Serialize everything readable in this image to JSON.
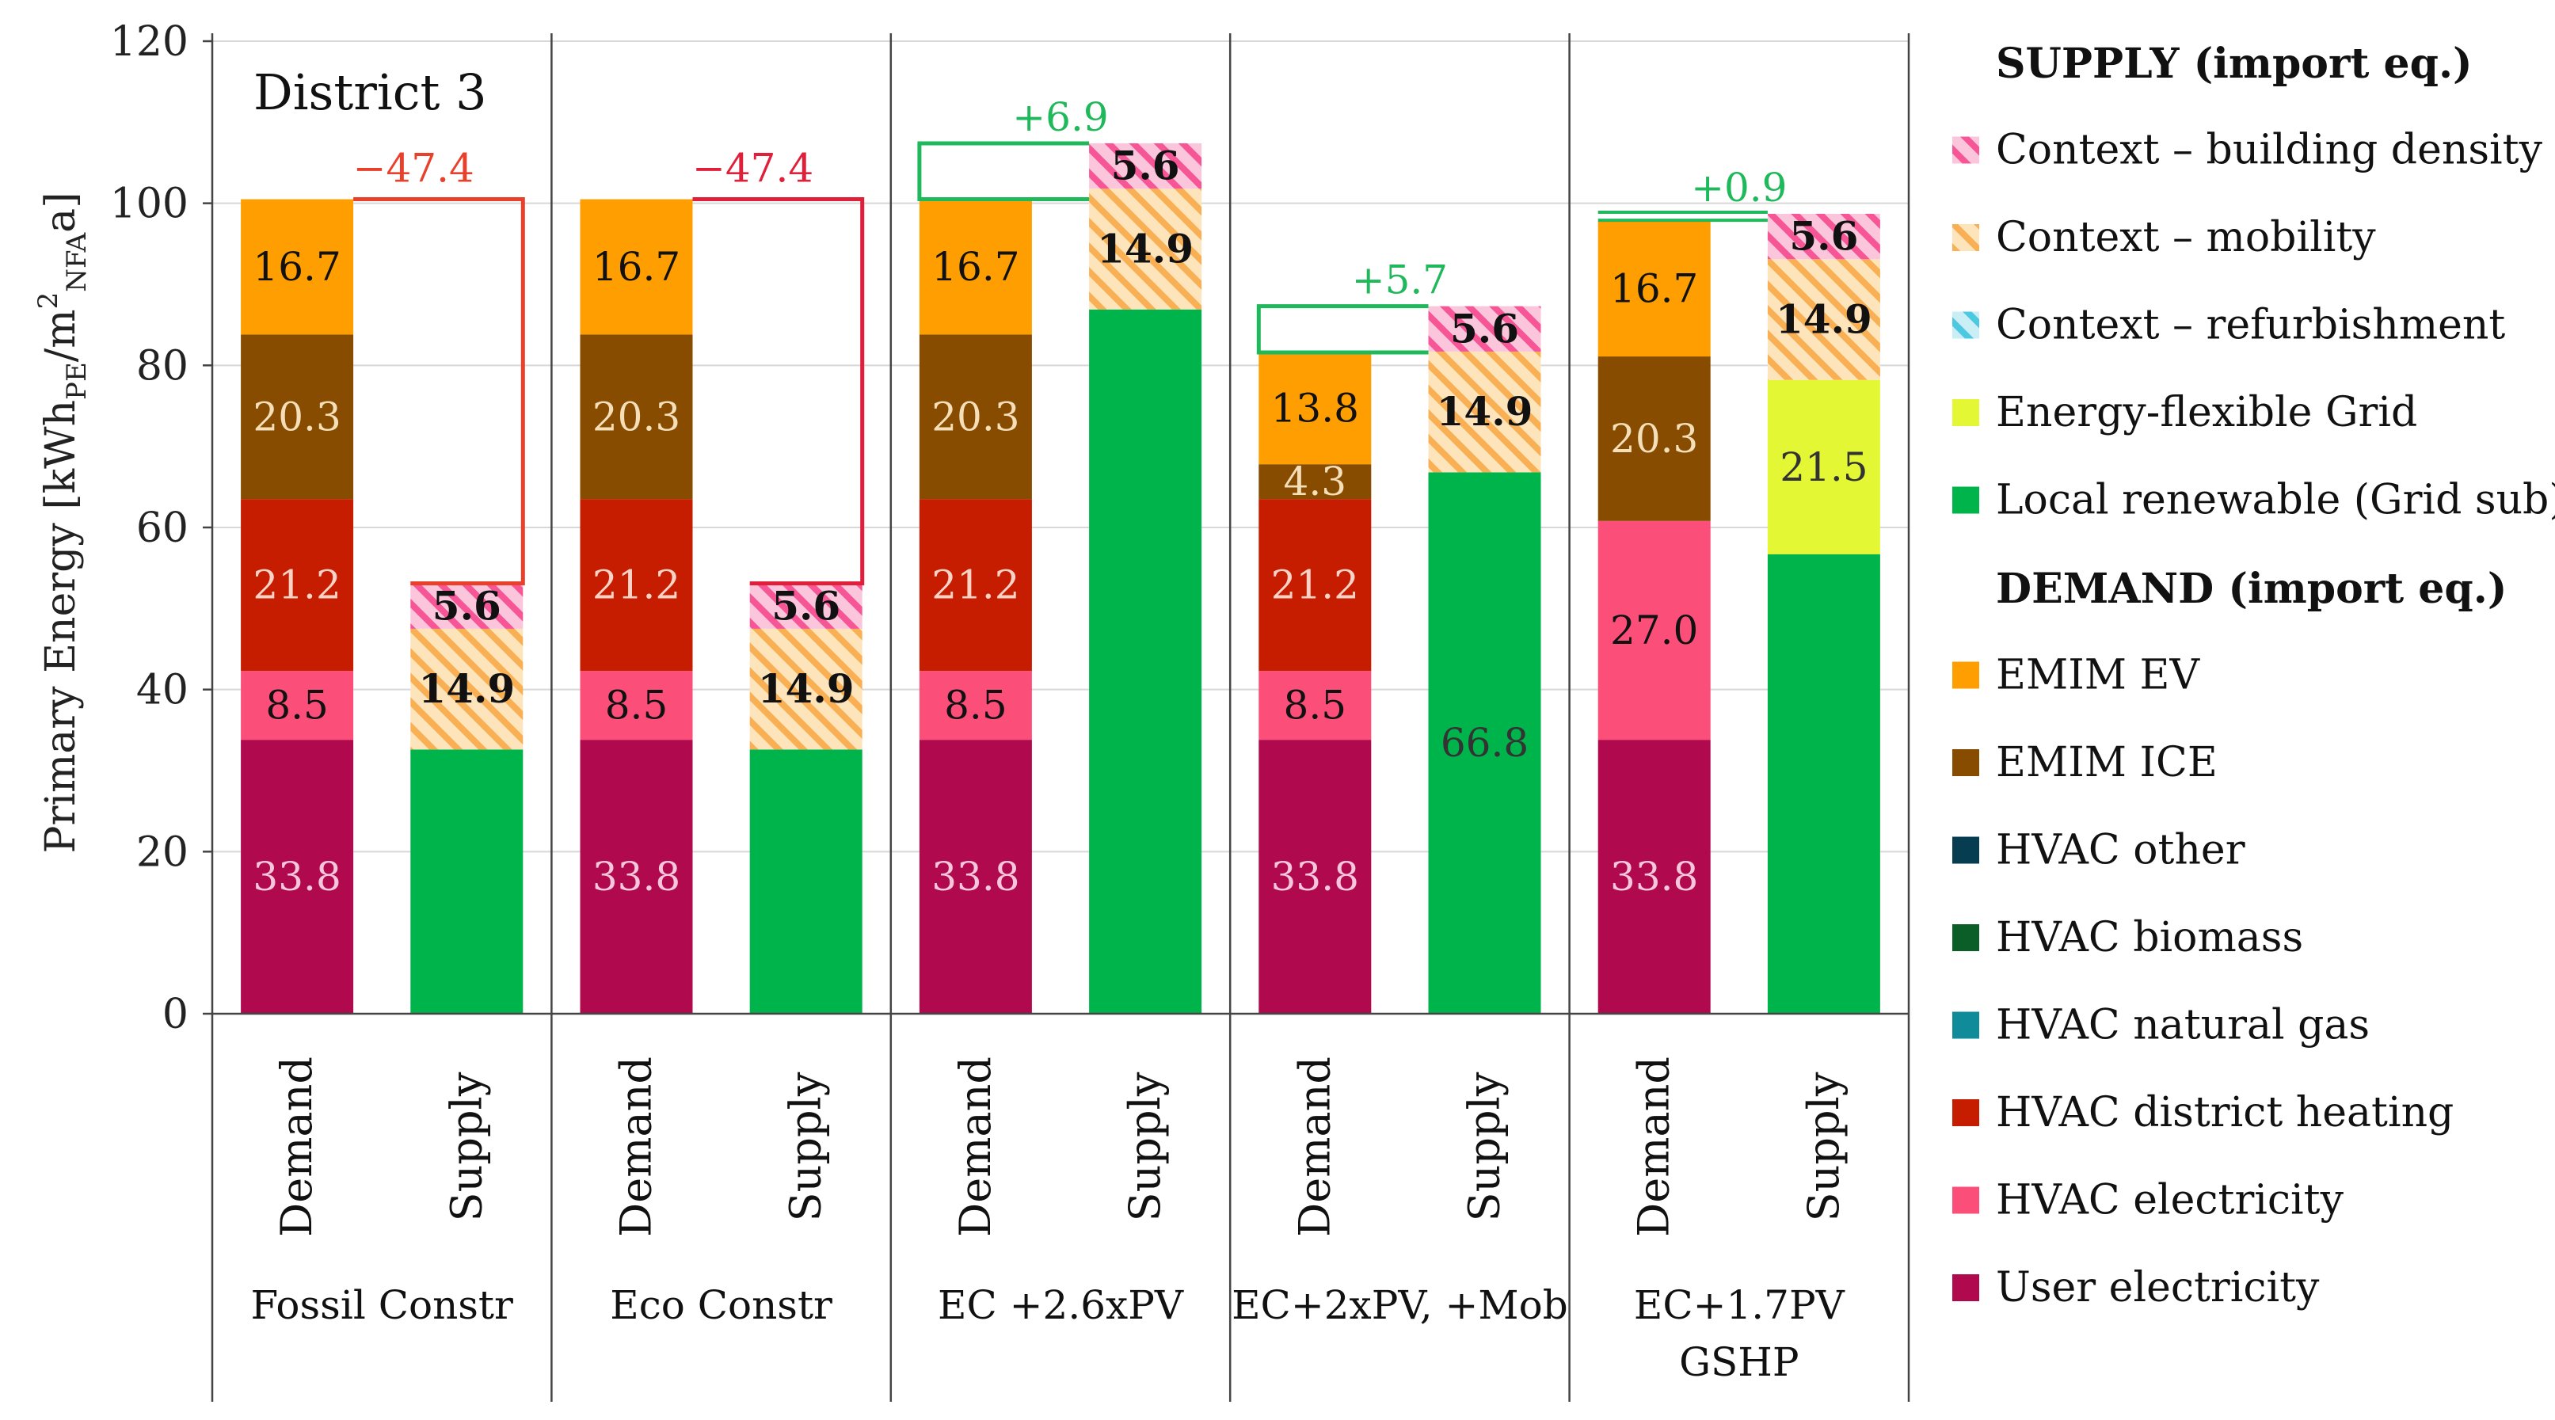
{
  "chart_data": {
    "type": "bar",
    "subtype": "stacked",
    "title": "District 3",
    "ylabel": {
      "main": "Primary Energy [kWh",
      "sub1": "PE",
      "mid": "/m",
      "sup": "2",
      "sub2": "NFA",
      "end": "a]"
    },
    "ylim": [
      0,
      120
    ],
    "yticks": [
      0,
      20,
      40,
      60,
      80,
      100,
      120
    ],
    "grid": true,
    "legend_position": "right",
    "groups": [
      {
        "label": [
          "Fossil Constr"
        ],
        "delta": "−47.4",
        "delta_color": "#e8402a",
        "demand_total": 100.5,
        "supply_total": 53.1
      },
      {
        "label": [
          "Eco Constr"
        ],
        "delta": "−47.4",
        "delta_color": "#e0203a",
        "demand_total": 100.5,
        "supply_total": 53.1
      },
      {
        "label": [
          "EC +2.6xPV"
        ],
        "delta": "+6.9",
        "delta_color": "#1fb85a",
        "demand_total": 100.5,
        "supply_total": 107.4
      },
      {
        "label": [
          "EC+2xPV, +Mob"
        ],
        "delta": "+5.7",
        "delta_color": "#1fb85a",
        "demand_total": 81.6,
        "supply_total": 87.3
      },
      {
        "label": [
          "EC+1.7PV",
          "GSHP"
        ],
        "delta": "+0.9",
        "delta_color": "#1fb85a",
        "demand_total": 97.8,
        "supply_total": 98.7
      }
    ],
    "bar_labels": [
      "Demand",
      "Supply"
    ],
    "bars": [
      {
        "group": 0,
        "kind": "demand",
        "segments": [
          {
            "series": "User electricity",
            "value": 33.8,
            "label": "33.8"
          },
          {
            "series": "HVAC electricity",
            "value": 8.5,
            "label": "8.5"
          },
          {
            "series": "HVAC district heating",
            "value": 21.2,
            "label": "21.2"
          },
          {
            "series": "EMIM ICE",
            "value": 20.3,
            "label": "20.3"
          },
          {
            "series": "EMIM EV",
            "value": 16.7,
            "label": "16.7"
          }
        ]
      },
      {
        "group": 0,
        "kind": "supply",
        "segments": [
          {
            "series": "Local renewable (Grid sub)",
            "value": 32.6,
            "label": ""
          },
          {
            "series": "Context – mobility",
            "value": 14.9,
            "label": "14.9"
          },
          {
            "series": "Context – building density",
            "value": 5.6,
            "label": "5.6"
          }
        ]
      },
      {
        "group": 1,
        "kind": "demand",
        "segments": [
          {
            "series": "User electricity",
            "value": 33.8,
            "label": "33.8"
          },
          {
            "series": "HVAC electricity",
            "value": 8.5,
            "label": "8.5"
          },
          {
            "series": "HVAC district heating",
            "value": 21.2,
            "label": "21.2"
          },
          {
            "series": "EMIM ICE",
            "value": 20.3,
            "label": "20.3"
          },
          {
            "series": "EMIM EV",
            "value": 16.7,
            "label": "16.7"
          }
        ]
      },
      {
        "group": 1,
        "kind": "supply",
        "segments": [
          {
            "series": "Local renewable (Grid sub)",
            "value": 32.6,
            "label": ""
          },
          {
            "series": "Context – mobility",
            "value": 14.9,
            "label": "14.9"
          },
          {
            "series": "Context – building density",
            "value": 5.6,
            "label": "5.6"
          }
        ]
      },
      {
        "group": 2,
        "kind": "demand",
        "segments": [
          {
            "series": "User electricity",
            "value": 33.8,
            "label": "33.8"
          },
          {
            "series": "HVAC electricity",
            "value": 8.5,
            "label": "8.5"
          },
          {
            "series": "HVAC district heating",
            "value": 21.2,
            "label": "21.2"
          },
          {
            "series": "EMIM ICE",
            "value": 20.3,
            "label": "20.3"
          },
          {
            "series": "EMIM EV",
            "value": 16.7,
            "label": "16.7"
          }
        ]
      },
      {
        "group": 2,
        "kind": "supply",
        "segments": [
          {
            "series": "Local renewable (Grid sub)",
            "value": 86.9,
            "label": ""
          },
          {
            "series": "Context – mobility",
            "value": 14.9,
            "label": "14.9"
          },
          {
            "series": "Context – building density",
            "value": 5.6,
            "label": "5.6"
          }
        ]
      },
      {
        "group": 3,
        "kind": "demand",
        "segments": [
          {
            "series": "User electricity",
            "value": 33.8,
            "label": "33.8"
          },
          {
            "series": "HVAC electricity",
            "value": 8.5,
            "label": "8.5"
          },
          {
            "series": "HVAC district heating",
            "value": 21.2,
            "label": "21.2"
          },
          {
            "series": "EMIM ICE",
            "value": 4.3,
            "label": "4.3"
          },
          {
            "series": "EMIM EV",
            "value": 13.8,
            "label": "13.8"
          }
        ]
      },
      {
        "group": 3,
        "kind": "supply",
        "segments": [
          {
            "series": "Local renewable (Grid sub)",
            "value": 66.8,
            "label": "66.8"
          },
          {
            "series": "Context – mobility",
            "value": 14.9,
            "label": "14.9"
          },
          {
            "series": "Context – building density",
            "value": 5.6,
            "label": "5.6"
          }
        ]
      },
      {
        "group": 4,
        "kind": "demand",
        "segments": [
          {
            "series": "User electricity",
            "value": 33.8,
            "label": "33.8"
          },
          {
            "series": "HVAC electricity",
            "value": 27.0,
            "label": "27.0"
          },
          {
            "series": "EMIM ICE",
            "value": 20.3,
            "label": "20.3"
          },
          {
            "series": "EMIM EV",
            "value": 16.7,
            "label": "16.7"
          }
        ]
      },
      {
        "group": 4,
        "kind": "supply",
        "segments": [
          {
            "series": "Local renewable (Grid sub)",
            "value": 56.7,
            "label": ""
          },
          {
            "series": "Energy-flexible Grid",
            "value": 21.5,
            "label": "21.5"
          },
          {
            "series": "Context – mobility",
            "value": 14.9,
            "label": "14.9"
          },
          {
            "series": "Context – building density",
            "value": 5.6,
            "label": "5.6"
          }
        ]
      }
    ],
    "series_styles": {
      "User electricity": {
        "color": "#b0094e",
        "label_color": "#f6c6dc",
        "bold": false
      },
      "HVAC electricity": {
        "color": "#fb4f7a",
        "label_color": "#111111",
        "bold": false
      },
      "HVAC district heating": {
        "color": "#c61c00",
        "label_color": "#fbd3c6",
        "bold": false
      },
      "EMIM ICE": {
        "color": "#884c00",
        "label_color": "#f5dfb8",
        "bold": false
      },
      "EMIM EV": {
        "color": "#ff9e00",
        "label_color": "#111111",
        "bold": false
      },
      "Local renewable (Grid sub)": {
        "color": "#00b44c",
        "label_color": "#333333",
        "bold": false
      },
      "Energy-flexible Grid": {
        "color": "#e4f734",
        "label_color": "#333333",
        "bold": false
      },
      "Context – mobility": {
        "color": "#fde4ba",
        "hatch": "#f9b054",
        "label_color": "#111111",
        "bold": true
      },
      "Context – building density": {
        "color": "#fbc6dc",
        "hatch": "#f65596",
        "label_color": "#111111",
        "bold": true
      }
    },
    "legend": {
      "supply_title": "SUPPLY (import eq.)",
      "demand_title": "DEMAND (import eq.)",
      "supply_items": [
        {
          "label": "Context – building density",
          "color": "#fbc6dc",
          "hatch": "#f65596"
        },
        {
          "label": "Context – mobility",
          "color": "#fde4ba",
          "hatch": "#f9b054"
        },
        {
          "label": "Context – refurbishment",
          "color": "#c9eef6",
          "hatch": "#4cc8e0"
        },
        {
          "label": "Energy-flexible Grid",
          "color": "#e4f734"
        },
        {
          "label": "Local renewable (Grid sub)",
          "color": "#00b44c"
        }
      ],
      "demand_items": [
        {
          "label": "EMIM EV",
          "color": "#ff9e00"
        },
        {
          "label": "EMIM ICE",
          "color": "#884c00"
        },
        {
          "label": "HVAC other",
          "color": "#073d51"
        },
        {
          "label": "HVAC biomass",
          "color": "#0b5e28"
        },
        {
          "label": "HVAC natural gas",
          "color": "#0f8b99"
        },
        {
          "label": "HVAC district heating",
          "color": "#c61c00"
        },
        {
          "label": "HVAC electricity",
          "color": "#fb4f7a"
        },
        {
          "label": "User electricity",
          "color": "#b0094e"
        }
      ]
    }
  }
}
